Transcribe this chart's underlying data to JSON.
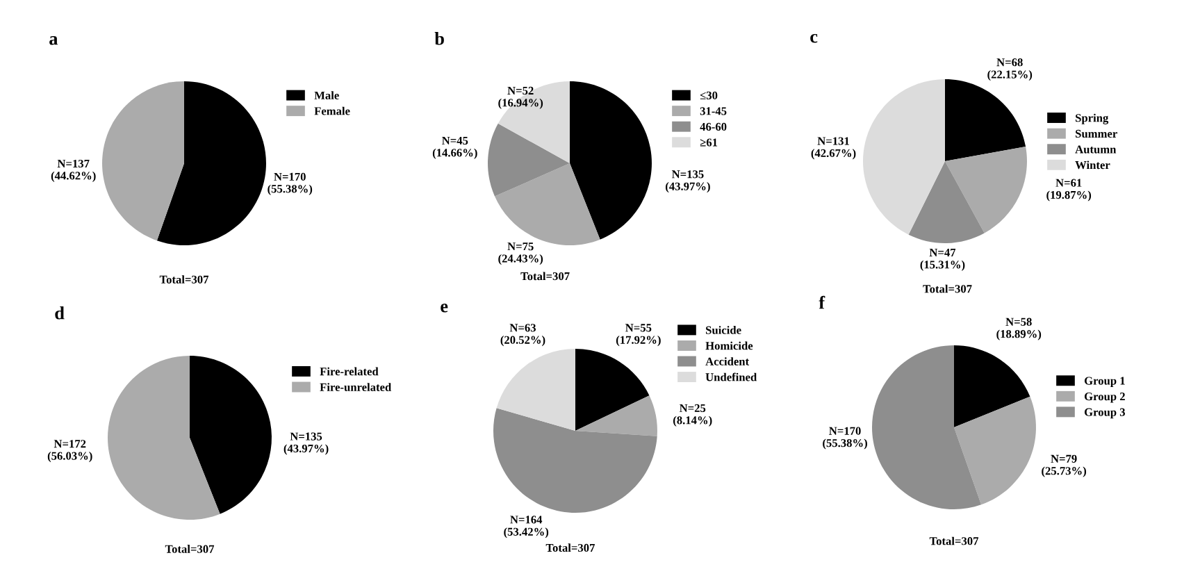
{
  "chart_data": [
    {
      "type": "pie",
      "title": "a",
      "categories": [
        "Male",
        "Female"
      ],
      "values": [
        170,
        137
      ],
      "colors": [
        "#000000",
        "#ababab"
      ],
      "value_labels": [
        "N=170\n(55.38%)",
        "N=137\n(44.62%)"
      ],
      "legend": "top right",
      "annotations": [
        "Total=307"
      ]
    },
    {
      "type": "pie",
      "title": "b",
      "categories": [
        "≤30",
        "31-45",
        "46-60",
        "≥61"
      ],
      "values": [
        135,
        75,
        45,
        52
      ],
      "colors": [
        "#000000",
        "#ababab",
        "#8e8e8e",
        "#dcdcdc"
      ],
      "value_labels": [
        "N=135\n(43.97%)",
        "N=75\n(24.43%)",
        "N=45\n(14.66%)",
        "N=52\n(16.94%)"
      ],
      "legend": "top right",
      "annotations": [
        "Total=307"
      ]
    },
    {
      "type": "pie",
      "title": "c",
      "categories": [
        "Spring",
        "Summer",
        "Autumn",
        "Winter"
      ],
      "values": [
        68,
        61,
        47,
        131
      ],
      "colors": [
        "#000000",
        "#ababab",
        "#8e8e8e",
        "#dcdcdc"
      ],
      "value_labels": [
        "N=68\n(22.15%)",
        "N=61\n(19.87%)",
        "N=47\n(15.31%)",
        "N=131\n(42.67%)"
      ],
      "legend": "top right",
      "annotations": [
        "Total=307"
      ]
    },
    {
      "type": "pie",
      "title": "d",
      "categories": [
        "Fire-related",
        "Fire-unrelated"
      ],
      "values": [
        135,
        172
      ],
      "colors": [
        "#000000",
        "#ababab"
      ],
      "value_labels": [
        "N=135\n(43.97%)",
        "N=172\n(56.03%)"
      ],
      "legend": "top right",
      "annotations": [
        "Total=307"
      ]
    },
    {
      "type": "pie",
      "title": "e",
      "categories": [
        "Suicide",
        "Homicide",
        "Accident",
        "Undefined"
      ],
      "values": [
        55,
        25,
        164,
        63
      ],
      "colors": [
        "#000000",
        "#ababab",
        "#8e8e8e",
        "#dcdcdc"
      ],
      "value_labels": [
        "N=55\n(17.92%)",
        "N=25\n(8.14%)",
        "N=164\n(53.42%)",
        "N=63\n(20.52%)"
      ],
      "legend": "top right",
      "annotations": [
        "Total=307"
      ]
    },
    {
      "type": "pie",
      "title": "f",
      "categories": [
        "Group 1",
        "Group 2",
        "Group 3"
      ],
      "values": [
        58,
        79,
        170
      ],
      "colors": [
        "#000000",
        "#ababab",
        "#8e8e8e"
      ],
      "value_labels": [
        "N=58\n(18.89%)",
        "N=79\n(25.73%)",
        "N=170\n(55.38%)"
      ],
      "legend": "top right",
      "annotations": [
        "Total=307"
      ]
    }
  ]
}
